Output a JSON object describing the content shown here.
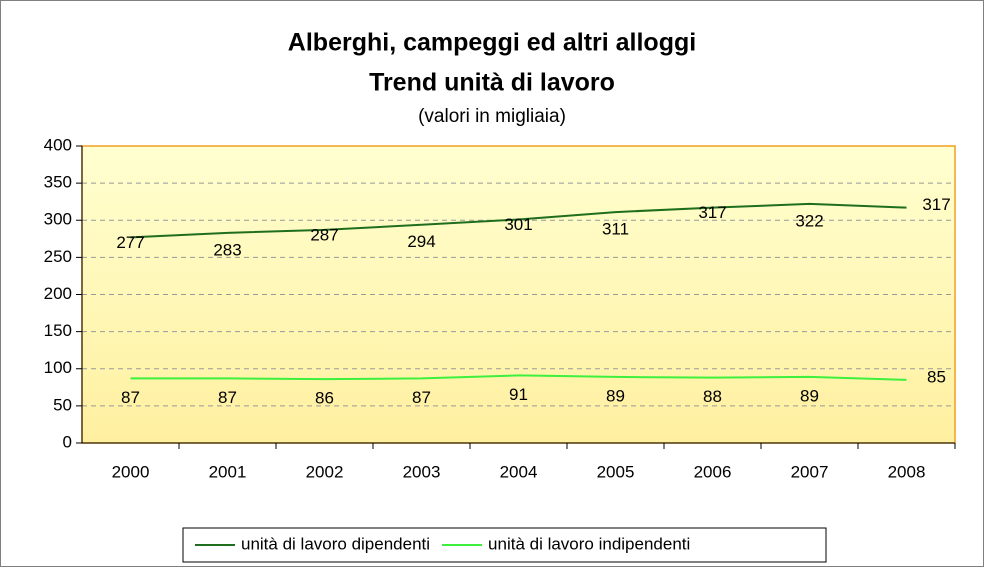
{
  "chart_data": {
    "type": "line",
    "title": "Alberghi, campeggi ed altri alloggi",
    "subtitle": "Trend unità di lavoro",
    "note": "(valori in migliaia)",
    "categories": [
      "2000",
      "2001",
      "2002",
      "2003",
      "2004",
      "2005",
      "2006",
      "2007",
      "2008"
    ],
    "series": [
      {
        "name": "unità di lavoro dipendenti",
        "color": "#1e6e1e",
        "values": [
          277,
          283,
          287,
          294,
          301,
          311,
          317,
          322,
          317
        ]
      },
      {
        "name": "unità di lavoro indipendenti",
        "color": "#3cf03c",
        "values": [
          87,
          87,
          86,
          87,
          91,
          89,
          88,
          89,
          85
        ]
      }
    ],
    "ylim": [
      0,
      400
    ],
    "yticks": [
      0,
      50,
      100,
      150,
      200,
      250,
      300,
      350,
      400
    ],
    "grid": true,
    "legend": "bottom"
  }
}
